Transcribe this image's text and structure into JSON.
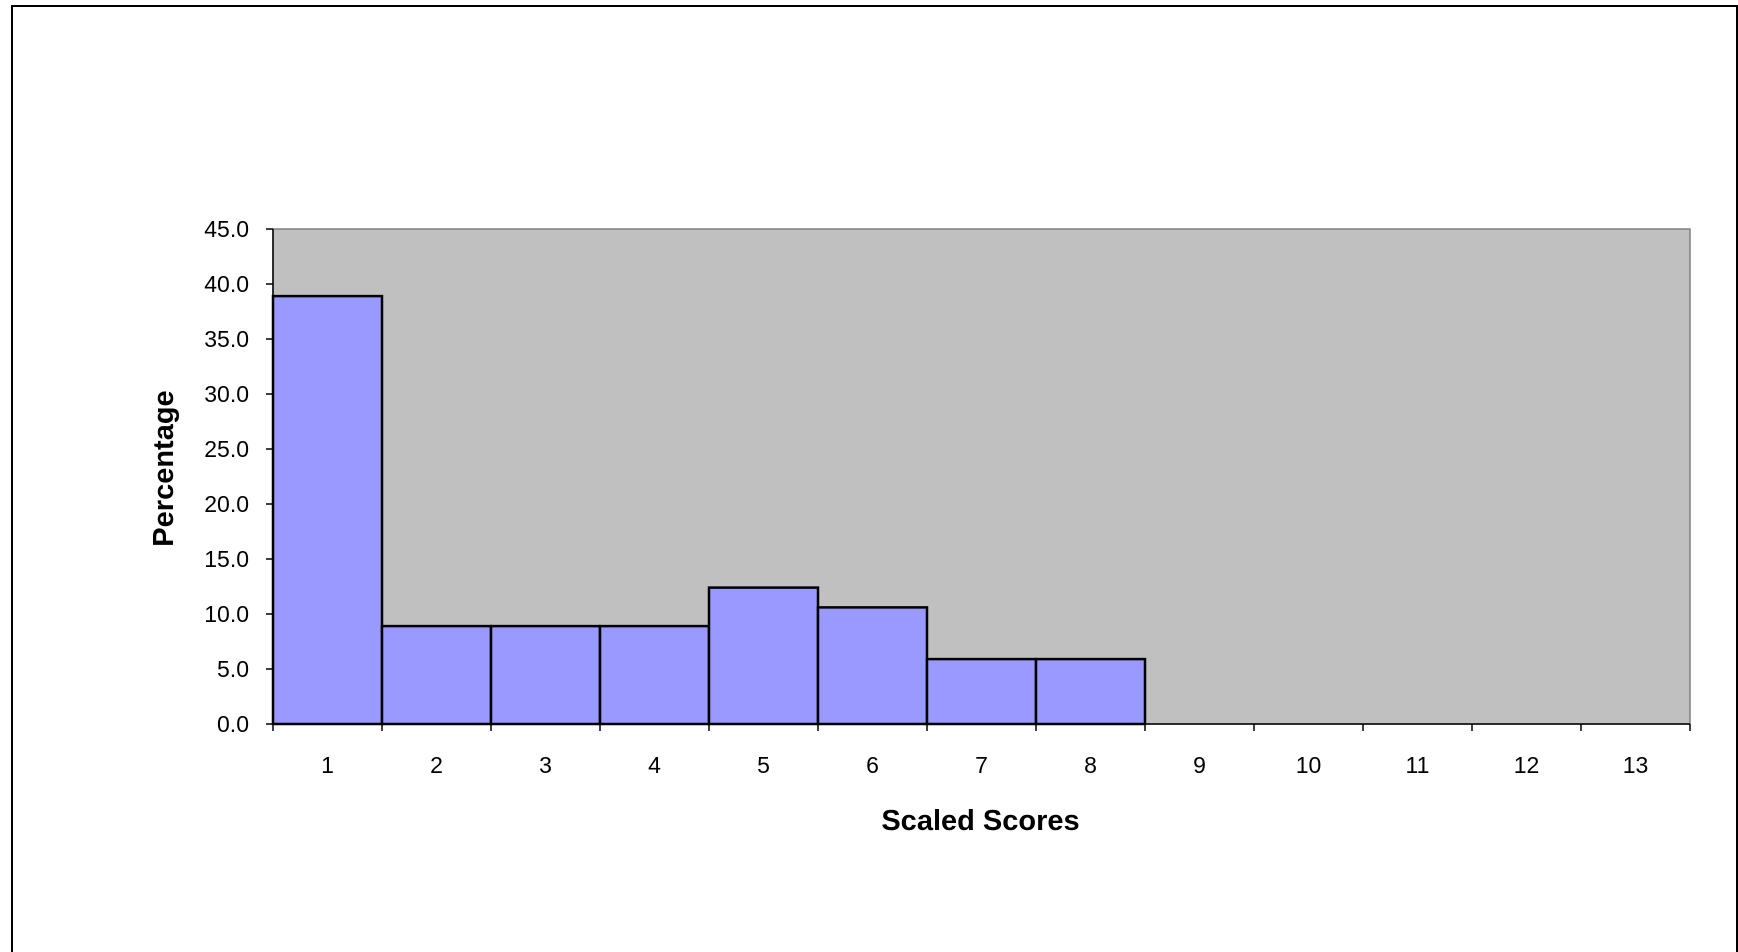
{
  "chart_data": {
    "type": "bar",
    "categories": [
      "1",
      "2",
      "3",
      "4",
      "5",
      "6",
      "7",
      "8",
      "9",
      "10",
      "11",
      "12",
      "13"
    ],
    "values": [
      38.9,
      8.9,
      8.9,
      8.9,
      12.4,
      10.6,
      5.9,
      5.9,
      0,
      0,
      0,
      0,
      0
    ],
    "title": "",
    "xlabel": "Scaled Scores",
    "ylabel": "Percentage",
    "ylim": [
      0,
      45
    ],
    "yticks": [
      "0.0",
      "5.0",
      "10.0",
      "15.0",
      "20.0",
      "25.0",
      "30.0",
      "35.0",
      "40.0",
      "45.0"
    ],
    "grid": false,
    "colors": {
      "bar_fill": "#9999ff",
      "bar_stroke": "#000000",
      "plot_background": "#c0c0c0"
    }
  }
}
